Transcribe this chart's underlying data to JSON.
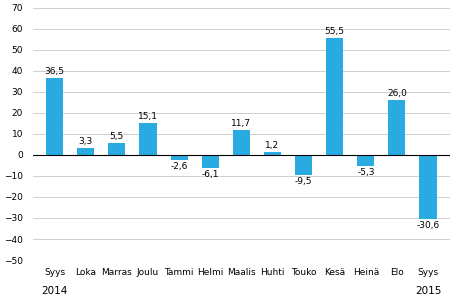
{
  "categories": [
    "Syys",
    "Loka",
    "Marras",
    "Joulu",
    "Tammi",
    "Helmi",
    "Maalis",
    "Huhti",
    "Touko",
    "Kesä",
    "Heinä",
    "Elo",
    "Syys"
  ],
  "values": [
    36.5,
    3.3,
    5.5,
    15.1,
    -2.6,
    -6.1,
    11.7,
    1.2,
    -9.5,
    55.5,
    -5.3,
    26.0,
    -30.6
  ],
  "value_labels": [
    "36,5",
    "3,3",
    "5,5",
    "15,1",
    "-2,6",
    "-6,1",
    "11,7",
    "1,2",
    "-9,5",
    "55,5",
    "-5,3",
    "26,0",
    "-30,6"
  ],
  "bar_color": "#29abe2",
  "ylim": [
    -50,
    70
  ],
  "yticks": [
    -50,
    -40,
    -30,
    -20,
    -10,
    0,
    10,
    20,
    30,
    40,
    50,
    60,
    70
  ],
  "label_fontsize": 6.5,
  "tick_fontsize": 6.5,
  "year_fontsize": 7.5,
  "background_color": "#ffffff",
  "grid_color": "#c8c8c8",
  "bar_width": 0.55
}
